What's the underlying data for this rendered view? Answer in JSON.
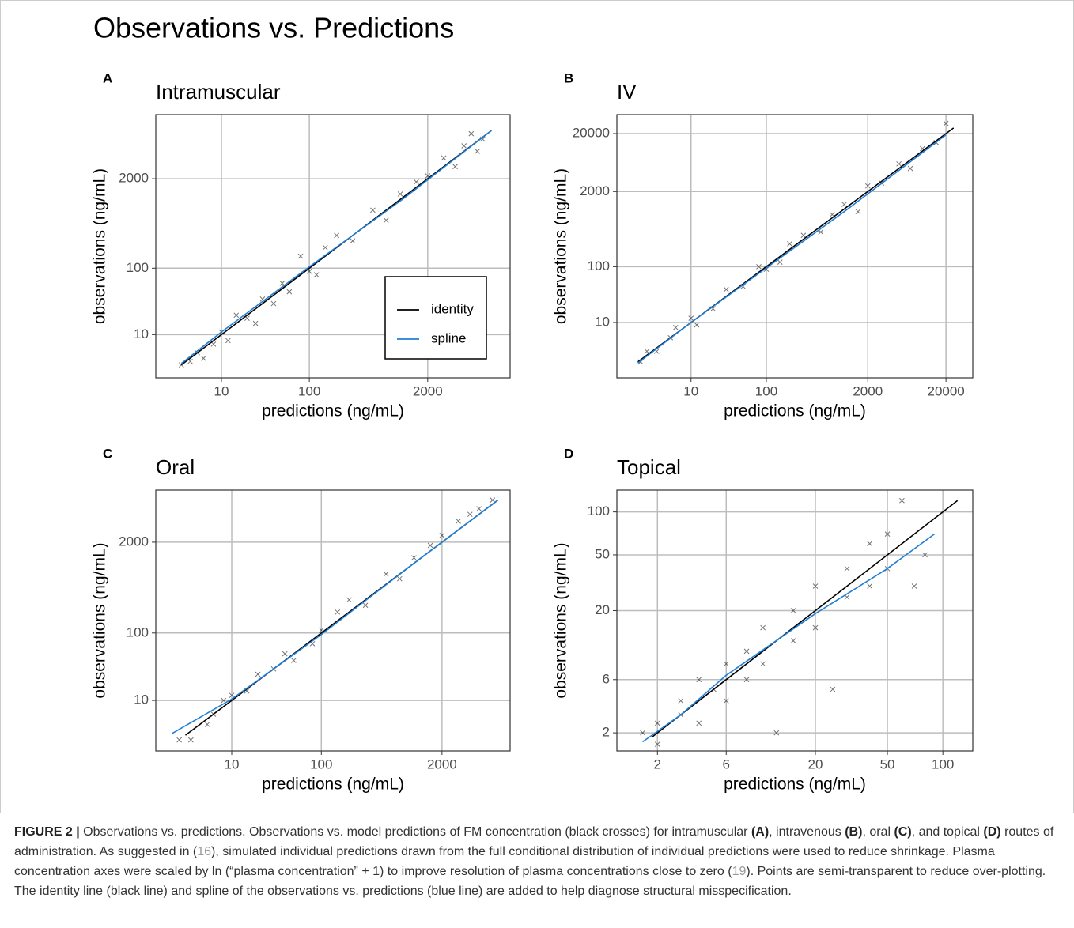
{
  "title": "Observations vs. Predictions",
  "chart_data": [
    {
      "type": "scatter",
      "panel": "A",
      "title": "Intramuscular",
      "xlabel": "predictions (ng/mL)",
      "ylabel": "observations (ng/mL)",
      "xscale": "log1p",
      "yscale": "log1p",
      "xlim": [
        1.1,
        16000
      ],
      "ylim": [
        1.6,
        17000
      ],
      "xticks": [
        10,
        100,
        2000
      ],
      "yticks": [
        10,
        100,
        2000
      ],
      "grid": true,
      "legend": "bottom right",
      "series": [
        {
          "type": "scatter",
          "color": "#000000",
          "x": [
            3,
            4,
            5,
            6,
            8,
            10,
            12,
            15,
            20,
            25,
            30,
            40,
            50,
            60,
            80,
            100,
            120,
            150,
            200,
            300,
            500,
            700,
            1000,
            1500,
            2000,
            3000,
            4000,
            5000,
            7000,
            6000,
            8000
          ],
          "values": [
            3,
            3.5,
            5,
            4,
            7,
            11,
            8,
            20,
            18,
            15,
            35,
            30,
            60,
            45,
            150,
            90,
            80,
            200,
            300,
            250,
            700,
            500,
            1200,
            1800,
            2200,
            4000,
            3000,
            6000,
            5000,
            9000,
            7500
          ]
        },
        {
          "type": "line",
          "name": "identity",
          "color": "#000000",
          "x": [
            3,
            10000
          ],
          "values": [
            3,
            10000
          ]
        },
        {
          "type": "line",
          "name": "spline",
          "color": "#1f7fd6",
          "x": [
            3,
            10,
            100,
            1000,
            10000
          ],
          "values": [
            3.2,
            11,
            105,
            950,
            10000
          ]
        }
      ]
    },
    {
      "type": "scatter",
      "panel": "B",
      "title": "IV",
      "xlabel": "predictions (ng/mL)",
      "ylabel": "observations (ng/mL)",
      "xscale": "log1p",
      "yscale": "log1p",
      "xlim": [
        0.24,
        44000
      ],
      "ylim": [
        0.22,
        42500
      ],
      "xticks": [
        10,
        100,
        2000,
        20000
      ],
      "yticks": [
        10,
        100,
        2000,
        20000
      ],
      "grid": true,
      "series": [
        {
          "type": "scatter",
          "color": "#000000",
          "x": [
            1.5,
            2,
            3,
            5,
            6,
            10,
            12,
            20,
            30,
            50,
            80,
            100,
            150,
            200,
            300,
            500,
            700,
            1000,
            1500,
            2000,
            3000,
            5000,
            7000,
            10000,
            15000,
            20000
          ],
          "values": [
            1.3,
            2.5,
            2.5,
            5,
            8,
            12,
            9,
            18,
            40,
            45,
            100,
            90,
            120,
            250,
            350,
            400,
            800,
            1200,
            900,
            2500,
            2800,
            6000,
            5000,
            11000,
            14000,
            30000
          ]
        },
        {
          "type": "line",
          "color": "#000000",
          "x": [
            1.3,
            25000
          ],
          "values": [
            1.3,
            25000
          ]
        },
        {
          "type": "line",
          "color": "#1f7fd6",
          "x": [
            1.3,
            10,
            100,
            1000,
            20000
          ],
          "values": [
            1.2,
            10,
            95,
            900,
            19000
          ]
        }
      ]
    },
    {
      "type": "scatter",
      "panel": "C",
      "title": "Oral",
      "xlabel": "predictions (ng/mL)",
      "ylabel": "observations (ng/mL)",
      "xscale": "log1p",
      "yscale": "log1p",
      "xlim": [
        0.68,
        10800
      ],
      "ylim": [
        1.09,
        11100
      ],
      "xticks": [
        10,
        100,
        2000
      ],
      "yticks": [
        10,
        100,
        2000
      ],
      "grid": true,
      "series": [
        {
          "type": "scatter",
          "color": "#000000",
          "x": [
            2,
            3,
            5,
            6,
            8,
            10,
            15,
            20,
            30,
            40,
            50,
            80,
            100,
            150,
            200,
            300,
            500,
            700,
            1000,
            1500,
            2000,
            3000,
            4000,
            5000,
            7000
          ],
          "values": [
            2,
            2,
            4,
            6,
            10,
            12,
            14,
            25,
            30,
            50,
            40,
            70,
            110,
            200,
            300,
            250,
            700,
            600,
            1200,
            1800,
            2500,
            4000,
            5000,
            6000,
            8000
          ]
        },
        {
          "type": "line",
          "color": "#000000",
          "x": [
            2.5,
            8000
          ],
          "values": [
            2.5,
            8000
          ]
        },
        {
          "type": "line",
          "color": "#1f7fd6",
          "x": [
            1.5,
            10,
            100,
            1000,
            8000
          ],
          "values": [
            2.7,
            10.5,
            95,
            1000,
            8000
          ]
        }
      ]
    },
    {
      "type": "scatter",
      "panel": "D",
      "title": "Topical",
      "xlabel": "predictions (ng/mL)",
      "ylabel": "observations (ng/mL)",
      "xscale": "log1p",
      "yscale": "log1p",
      "xlim": [
        0.82,
        145
      ],
      "ylim": [
        1.25,
        142
      ],
      "xticks": [
        2,
        6,
        20,
        50,
        100
      ],
      "yticks": [
        2,
        6,
        20,
        50,
        100
      ],
      "grid": true,
      "series": [
        {
          "type": "scatter",
          "color": "#000000",
          "x": [
            1.5,
            2,
            2,
            3,
            3,
            4,
            4,
            5,
            6,
            6,
            8,
            8,
            10,
            10,
            12,
            15,
            15,
            20,
            20,
            25,
            30,
            30,
            40,
            40,
            50,
            50,
            60,
            70,
            80
          ],
          "values": [
            2,
            2.5,
            1.5,
            3,
            4,
            2.5,
            6,
            5,
            8,
            4,
            10,
            6,
            15,
            8,
            2,
            20,
            12,
            30,
            15,
            5,
            40,
            25,
            60,
            30,
            70,
            40,
            120,
            30,
            50
          ]
        },
        {
          "type": "line",
          "color": "#000000",
          "x": [
            1.8,
            120
          ],
          "values": [
            1.8,
            120
          ]
        },
        {
          "type": "line",
          "color": "#1f7fd6",
          "x": [
            1.5,
            3,
            6,
            20,
            50,
            90
          ],
          "values": [
            1.6,
            3,
            6.5,
            19,
            40,
            70
          ]
        }
      ]
    }
  ],
  "caption": [
    {
      "text": "FIGURE 2 |",
      "bold": true
    },
    {
      "text": " Observations vs. predictions. Observations vs. model predictions of FM concentration (black crosses) for intramuscular "
    },
    {
      "text": "(A)",
      "bold": true
    },
    {
      "text": ", intravenous "
    },
    {
      "text": "(B)",
      "bold": true
    },
    {
      "text": ", oral "
    },
    {
      "text": "(C)",
      "bold": true
    },
    {
      "text": ", and topical "
    },
    {
      "text": "(D)",
      "bold": true
    },
    {
      "text": " routes of administration. As suggested in ("
    },
    {
      "text": "16",
      "ref": true
    },
    {
      "text": "), simulated individual predictions drawn from the full conditional distribution of individual predictions were used to reduce shrinkage. Plasma concentration axes were scaled by ln (“plasma concentration” + 1) to improve resolution of plasma concentrations close to zero ("
    },
    {
      "text": "19",
      "ref": true
    },
    {
      "text": "). Points are semi-transparent to reduce over-plotting. The identity line (black line) and spline of the observations vs. predictions (blue line) are added to help diagnose structural misspecification."
    }
  ]
}
